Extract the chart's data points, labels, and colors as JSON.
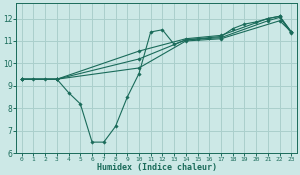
{
  "xlabel": "Humidex (Indice chaleur)",
  "background_color": "#cce8e6",
  "grid_color": "#aacfcc",
  "line_color": "#1a6b5a",
  "xlim": [
    -0.5,
    23.5
  ],
  "ylim": [
    6,
    12.7
  ],
  "xticks": [
    0,
    1,
    2,
    3,
    4,
    5,
    6,
    7,
    8,
    9,
    10,
    11,
    12,
    13,
    14,
    15,
    16,
    17,
    18,
    19,
    20,
    21,
    22,
    23
  ],
  "yticks": [
    6,
    7,
    8,
    9,
    10,
    11,
    12
  ],
  "series": [
    {
      "x": [
        0,
        1,
        2,
        3,
        4,
        5,
        6,
        7,
        8,
        9,
        10,
        11,
        12,
        13,
        14,
        15,
        16,
        17,
        18,
        19,
        20,
        21,
        22,
        23
      ],
      "y": [
        9.3,
        9.3,
        9.3,
        9.3,
        8.7,
        8.2,
        6.5,
        6.5,
        7.2,
        8.5,
        9.55,
        11.4,
        11.5,
        10.85,
        11.05,
        11.1,
        11.15,
        11.2,
        11.55,
        11.75,
        11.85,
        12.0,
        12.1,
        11.4
      ]
    },
    {
      "x": [
        0,
        3,
        10,
        14,
        17,
        22,
        23
      ],
      "y": [
        9.3,
        9.3,
        9.8,
        11.0,
        11.1,
        11.9,
        11.4
      ]
    },
    {
      "x": [
        0,
        3,
        10,
        14,
        17,
        21,
        22,
        23
      ],
      "y": [
        9.3,
        9.3,
        10.55,
        11.1,
        11.25,
        12.0,
        12.1,
        11.4
      ]
    },
    {
      "x": [
        0,
        3,
        10,
        14,
        17,
        21,
        22,
        23
      ],
      "y": [
        9.3,
        9.3,
        10.2,
        11.05,
        11.15,
        11.9,
        12.05,
        11.35
      ]
    }
  ]
}
